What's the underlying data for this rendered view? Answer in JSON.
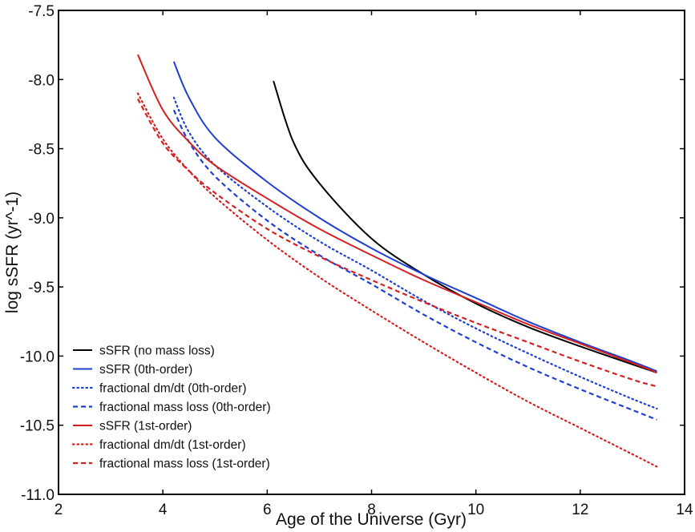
{
  "chart_data": {
    "type": "line",
    "title": "",
    "xlabel": "Age of the Universe (Gyr)",
    "ylabel": "log sSFR (yr^-1)",
    "xlim": [
      2,
      14
    ],
    "ylim": [
      -11.0,
      -7.5
    ],
    "xticks": [
      2,
      4,
      6,
      8,
      10,
      12,
      14
    ],
    "xtick_labels": [
      "2",
      "4",
      "6",
      "8",
      "10",
      "12",
      "14"
    ],
    "yticks": [
      -7.5,
      -8.0,
      -8.5,
      -9.0,
      -9.5,
      -10.0,
      -10.5,
      -11.0
    ],
    "ytick_labels": [
      "-7.5",
      "-8.0",
      "-8.5",
      "-9.0",
      "-9.5",
      "-10.0",
      "-10.5",
      "-11.0"
    ],
    "grid": false,
    "legend_position": "bottom-left",
    "series": [
      {
        "name": "sSFR (no mass loss)",
        "color": "#000000",
        "style": "solid",
        "x": [
          6.12,
          6.5,
          7,
          8,
          9,
          10,
          11,
          12,
          13,
          13.47
        ],
        "y": [
          -8.01,
          -8.45,
          -8.75,
          -9.15,
          -9.41,
          -9.62,
          -9.79,
          -9.93,
          -10.06,
          -10.12
        ]
      },
      {
        "name": "sSFR (0th-order)",
        "color": "#1f3fd0",
        "style": "solid",
        "x": [
          4.21,
          4.5,
          5,
          6,
          7,
          8,
          9,
          10,
          11,
          12,
          13,
          13.47
        ],
        "y": [
          -7.87,
          -8.13,
          -8.42,
          -8.74,
          -9.0,
          -9.22,
          -9.41,
          -9.58,
          -9.75,
          -9.9,
          -10.04,
          -10.11
        ]
      },
      {
        "name": "fractional dm/dt (0th-order)",
        "color": "#1f3fd0",
        "style": "dotted",
        "x": [
          4.21,
          4.5,
          5,
          6,
          7,
          8,
          9,
          10,
          11,
          12,
          13,
          13.47
        ],
        "y": [
          -8.13,
          -8.38,
          -8.62,
          -8.92,
          -9.17,
          -9.38,
          -9.6,
          -9.8,
          -9.98,
          -10.15,
          -10.31,
          -10.38
        ]
      },
      {
        "name": "fractional mass loss (0th-order)",
        "color": "#1f3fd0",
        "style": "dashed",
        "x": [
          4.21,
          4.5,
          5,
          6,
          7,
          8,
          9,
          10,
          11,
          12,
          13,
          13.47
        ],
        "y": [
          -8.22,
          -8.45,
          -8.7,
          -9.02,
          -9.27,
          -9.48,
          -9.7,
          -9.9,
          -10.08,
          -10.24,
          -10.39,
          -10.46
        ]
      },
      {
        "name": "sSFR (1st-order)",
        "color": "#d42020",
        "style": "solid",
        "x": [
          3.52,
          4,
          4.5,
          5,
          6,
          7,
          8,
          9,
          10,
          11,
          12,
          13,
          13.47
        ],
        "y": [
          -7.82,
          -8.22,
          -8.45,
          -8.62,
          -8.86,
          -9.08,
          -9.27,
          -9.45,
          -9.61,
          -9.77,
          -9.91,
          -10.05,
          -10.12
        ]
      },
      {
        "name": "fractional dm/dt (1st-order)",
        "color": "#d42020",
        "style": "dotted",
        "x": [
          3.52,
          4,
          4.5,
          5,
          6,
          7,
          8,
          9,
          10,
          11,
          12,
          13,
          13.47
        ],
        "y": [
          -8.1,
          -8.43,
          -8.66,
          -8.85,
          -9.16,
          -9.43,
          -9.67,
          -9.9,
          -10.12,
          -10.33,
          -10.52,
          -10.71,
          -10.8
        ]
      },
      {
        "name": "fractional mass loss (1st-order)",
        "color": "#d42020",
        "style": "dashed",
        "x": [
          3.52,
          4,
          4.5,
          5,
          6,
          7,
          8,
          9,
          10,
          11,
          12,
          13,
          13.47
        ],
        "y": [
          -8.14,
          -8.46,
          -8.66,
          -8.82,
          -9.08,
          -9.28,
          -9.45,
          -9.61,
          -9.76,
          -9.9,
          -10.04,
          -10.17,
          -10.22
        ]
      }
    ]
  }
}
